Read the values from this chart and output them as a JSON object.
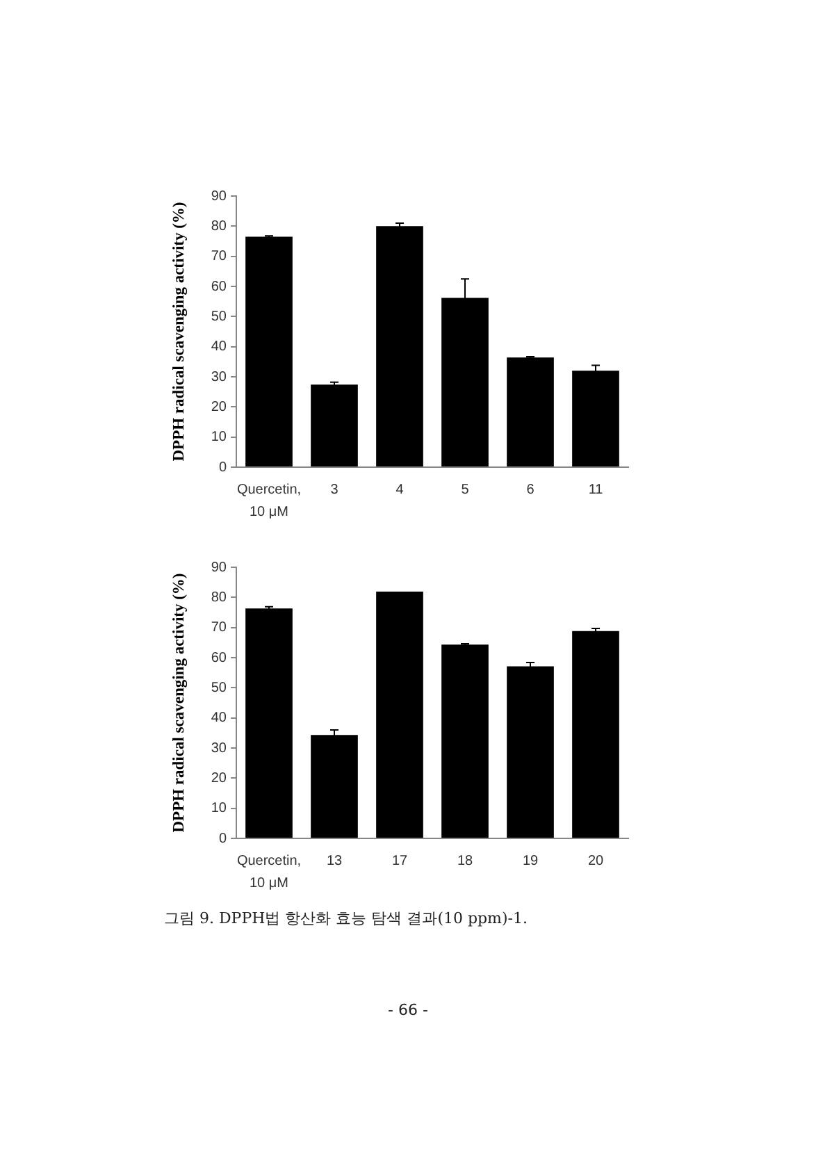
{
  "chart_data": [
    {
      "type": "bar",
      "categories": [
        "Quercetin, 10 μM",
        "3",
        "4",
        "5",
        "6",
        "11"
      ],
      "values": [
        76.5,
        27.4,
        80.0,
        56.2,
        36.4,
        32.0
      ],
      "errors": [
        0.3,
        0.8,
        1.0,
        6.3,
        0.3,
        1.8
      ],
      "color": "#000000",
      "ylabel": "DPPH radical scavenging activity (%)",
      "ylim": [
        0,
        90
      ],
      "yticks": [
        0,
        10,
        20,
        30,
        40,
        50,
        60,
        70,
        80,
        90
      ],
      "grid": false
    },
    {
      "type": "bar",
      "categories": [
        "Quercetin, 10 μM",
        "13",
        "17",
        "18",
        "19",
        "20"
      ],
      "values": [
        76.3,
        34.3,
        81.9,
        64.3,
        57.1,
        68.8
      ],
      "errors": [
        0.6,
        1.7,
        null,
        0.3,
        1.3,
        0.9
      ],
      "color": "#000000",
      "ylabel": "DPPH radical scavenging activity (%)",
      "ylim": [
        0,
        90
      ],
      "yticks": [
        0,
        10,
        20,
        30,
        40,
        50,
        60,
        70,
        80,
        90
      ],
      "grid": false,
      "annotations": [
        "그림 9. DPPH법 항산화 효능 탐색 결과(10 ppm)-1.",
        "- 66 -"
      ]
    }
  ]
}
